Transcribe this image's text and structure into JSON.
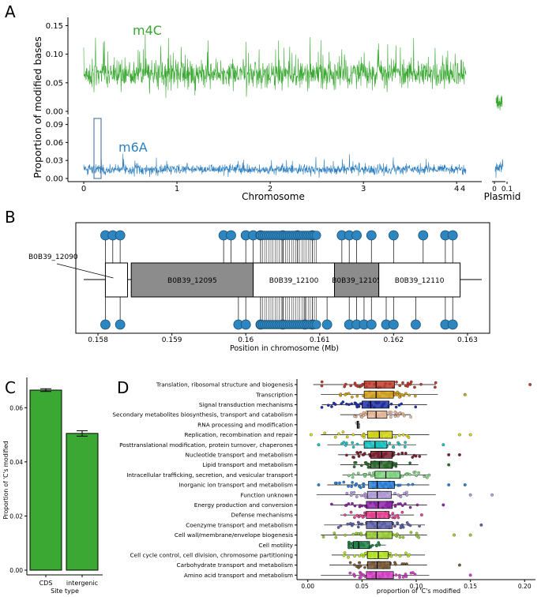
{
  "colors": {
    "m4c": "#3aa832",
    "m6a": "#2e7fc0",
    "bar": "#3aa832",
    "pin": "#2e86c1",
    "gene_grey": "#8c8c8c"
  },
  "chart_data": [
    {
      "panel": "A",
      "type": "line",
      "ylabel": "Proportion of modified bases",
      "xlabel": "Chromosome",
      "plasmid_label": "Plasmid",
      "series": [
        {
          "name": "m4C",
          "mean": 0.065,
          "ylim": [
            0,
            0.17
          ],
          "yticks": [
            "0.00",
            "0.05",
            "0.10",
            "0.15"
          ]
        },
        {
          "name": "m6A",
          "mean": 0.015,
          "ylim": [
            0,
            0.1
          ],
          "yticks": [
            "0.00",
            "0.03",
            "0.06",
            "0.09"
          ]
        }
      ],
      "xticks": [
        "0",
        "1",
        "2",
        "3",
        "4"
      ],
      "xtick_extra": "4",
      "plasmid_xticks": [
        "0",
        "0.1"
      ],
      "xlim_mb": [
        0,
        4.3
      ]
    },
    {
      "panel": "B",
      "type": "gene-map",
      "xlabel": "Position in chromosome (Mb)",
      "xticks": [
        "0.158",
        "0.159",
        "0.16",
        "0.161",
        "0.162",
        "0.163"
      ],
      "xlim": [
        0.1577,
        0.1633
      ],
      "genes": [
        {
          "name": "B0B39_12090",
          "start": 0.1581,
          "end": 0.1584,
          "fill": "white",
          "label_outside": true
        },
        {
          "name": "B0B39_12095",
          "start": 0.15845,
          "end": 0.1601,
          "fill": "grey"
        },
        {
          "name": "B0B39_12100",
          "start": 0.1601,
          "end": 0.1612,
          "fill": "white"
        },
        {
          "name": "B0B39_12105",
          "start": 0.1612,
          "end": 0.1618,
          "fill": "grey"
        },
        {
          "name": "B0B39_12110",
          "start": 0.1618,
          "end": 0.1629,
          "fill": "white"
        }
      ],
      "sites_top": [
        0.1581,
        0.1582,
        0.1583,
        0.1597,
        0.1598,
        0.16,
        0.1601,
        0.1602,
        0.1605,
        0.1607,
        0.1609,
        0.1613,
        0.1614,
        0.1615,
        0.1617,
        0.162,
        0.1624,
        0.1627,
        0.1628
      ],
      "sites_bottom": [
        0.1581,
        0.1583,
        0.1599,
        0.16,
        0.1602,
        0.1605,
        0.1608,
        0.1609,
        0.1611,
        0.1614,
        0.1615,
        0.1616,
        0.1617,
        0.1619,
        0.162,
        0.1623,
        0.1627,
        0.1628
      ]
    },
    {
      "panel": "C",
      "type": "bar",
      "ylabel": "Proportion of 'C's modified",
      "xlabel": "Site type",
      "categories": [
        "CDS",
        "intergenic"
      ],
      "values": [
        0.0665,
        0.0505
      ],
      "errors": [
        0.0005,
        0.001
      ],
      "ylim": [
        0,
        0.07
      ],
      "yticks": [
        "0.00",
        "0.02",
        "0.04",
        "0.06"
      ]
    },
    {
      "panel": "D",
      "type": "boxplot",
      "xlabel": "proportion of 'C's modified",
      "xlim": [
        -0.01,
        0.21
      ],
      "xticks": [
        "0.00",
        "0.05",
        "0.10",
        "0.15",
        "0.20"
      ],
      "categories": [
        {
          "label": "Translation, ribosomal structure and biogenesis",
          "q1": 0.052,
          "median": 0.063,
          "q3": 0.08,
          "wlo": 0.005,
          "whi": 0.118,
          "color": "#c0392b",
          "outliers": [
            0.205
          ]
        },
        {
          "label": "Transcription",
          "q1": 0.052,
          "median": 0.063,
          "q3": 0.079,
          "wlo": 0.012,
          "whi": 0.12,
          "color": "#d4a017",
          "outliers": [
            0.145
          ]
        },
        {
          "label": "Signal transduction mechanisms",
          "q1": 0.05,
          "median": 0.058,
          "q3": 0.075,
          "wlo": 0.013,
          "whi": 0.11,
          "color": "#1f2fa6",
          "outliers": []
        },
        {
          "label": "Secondary metabolites biosynthesis, transport and catabolism",
          "q1": 0.055,
          "median": 0.063,
          "q3": 0.073,
          "wlo": 0.03,
          "whi": 0.095,
          "color": "#e8b89a",
          "outliers": []
        },
        {
          "label": "RNA processing and modification",
          "q1": 0.0455,
          "median": 0.046,
          "q3": 0.0465,
          "wlo": 0.045,
          "whi": 0.047,
          "color": "#c8c8c8",
          "outliers": []
        },
        {
          "label": "Replication, recombination and repair",
          "q1": 0.055,
          "median": 0.066,
          "q3": 0.078,
          "wlo": 0.012,
          "whi": 0.112,
          "color": "#d6d61a",
          "outliers": [
            0.003,
            0.14,
            0.15
          ]
        },
        {
          "label": "Posttranslational modification, protein turnover, chaperones",
          "q1": 0.052,
          "median": 0.062,
          "q3": 0.073,
          "wlo": 0.018,
          "whi": 0.1,
          "color": "#17c4c4",
          "outliers": [
            0.01,
            0.125
          ]
        },
        {
          "label": "Nucleotide transport and metabolism",
          "q1": 0.058,
          "median": 0.068,
          "q3": 0.078,
          "wlo": 0.028,
          "whi": 0.11,
          "color": "#7a1f2f",
          "outliers": [
            0.13,
            0.14
          ]
        },
        {
          "label": "Lipid transport and metabolism",
          "q1": 0.058,
          "median": 0.066,
          "q3": 0.078,
          "wlo": 0.03,
          "whi": 0.102,
          "color": "#2e6b2e",
          "outliers": [
            0.13
          ]
        },
        {
          "label": "Intracellular trafficking, secretion, and vesicular transport",
          "q1": 0.062,
          "median": 0.072,
          "q3": 0.085,
          "wlo": 0.032,
          "whi": 0.112,
          "color": "#7fd67f",
          "outliers": []
        },
        {
          "label": "Inorganic ion transport and metabolism",
          "q1": 0.056,
          "median": 0.064,
          "q3": 0.08,
          "wlo": 0.018,
          "whi": 0.112,
          "color": "#2980d9",
          "outliers": [
            0.01,
            0.13,
            0.145
          ]
        },
        {
          "label": "Function unknown",
          "q1": 0.055,
          "median": 0.064,
          "q3": 0.077,
          "wlo": 0.008,
          "whi": 0.118,
          "color": "#b39ddb",
          "outliers": [
            0.15,
            0.17
          ]
        },
        {
          "label": "Energy production and conversion",
          "q1": 0.054,
          "median": 0.065,
          "q3": 0.078,
          "wlo": 0.022,
          "whi": 0.11,
          "color": "#8e24aa",
          "outliers": [
            0.125
          ]
        },
        {
          "label": "Defense mechanisms",
          "q1": 0.054,
          "median": 0.063,
          "q3": 0.075,
          "wlo": 0.03,
          "whi": 0.098,
          "color": "#e84393",
          "outliers": [
            0.105
          ]
        },
        {
          "label": "Coenzyme transport and metabolism",
          "q1": 0.054,
          "median": 0.064,
          "q3": 0.078,
          "wlo": 0.015,
          "whi": 0.108,
          "color": "#5d5fa8",
          "outliers": [
            0.16
          ]
        },
        {
          "label": "Cell wall/membrane/envelope biogenesis",
          "q1": 0.054,
          "median": 0.064,
          "q3": 0.078,
          "wlo": 0.012,
          "whi": 0.11,
          "color": "#9acd32",
          "outliers": [
            0.135,
            0.15
          ]
        },
        {
          "label": "Cell motility",
          "q1": 0.042,
          "median": 0.047,
          "q3": 0.057,
          "wlo": 0.038,
          "whi": 0.072,
          "color": "#1e8449",
          "outliers": []
        },
        {
          "label": "Cell cycle control, cell division, chromosome partitioning",
          "q1": 0.055,
          "median": 0.065,
          "q3": 0.074,
          "wlo": 0.022,
          "whi": 0.108,
          "color": "#b5e61d",
          "outliers": []
        },
        {
          "label": "Carbohydrate transport and metabolism",
          "q1": 0.055,
          "median": 0.064,
          "q3": 0.076,
          "wlo": 0.02,
          "whi": 0.11,
          "color": "#7a5c3a",
          "outliers": [
            0.14
          ]
        },
        {
          "label": "Amino acid transport and metabolism",
          "q1": 0.054,
          "median": 0.063,
          "q3": 0.079,
          "wlo": 0.012,
          "whi": 0.112,
          "color": "#d63fc8",
          "outliers": [
            0.15
          ]
        }
      ]
    }
  ],
  "panels": {
    "a": "A",
    "b": "B",
    "c": "C",
    "d": "D"
  }
}
